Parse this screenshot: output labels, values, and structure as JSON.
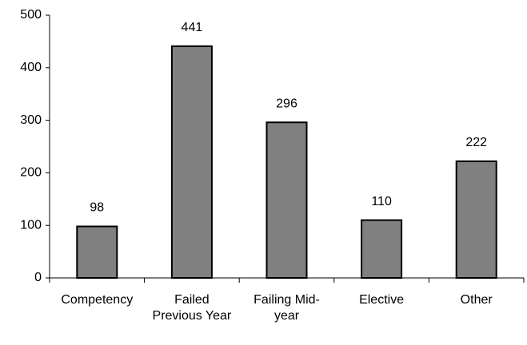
{
  "chart_data": {
    "type": "bar",
    "categories": [
      "Competency",
      "Failed Previous Year",
      "Failing Mid-year",
      "Elective",
      "Other"
    ],
    "values": [
      98,
      441,
      296,
      110,
      222
    ],
    "color": "#808080",
    "ylim": [
      0,
      500
    ],
    "yticks": [
      0,
      100,
      200,
      300,
      400,
      500
    ],
    "grid": false
  }
}
